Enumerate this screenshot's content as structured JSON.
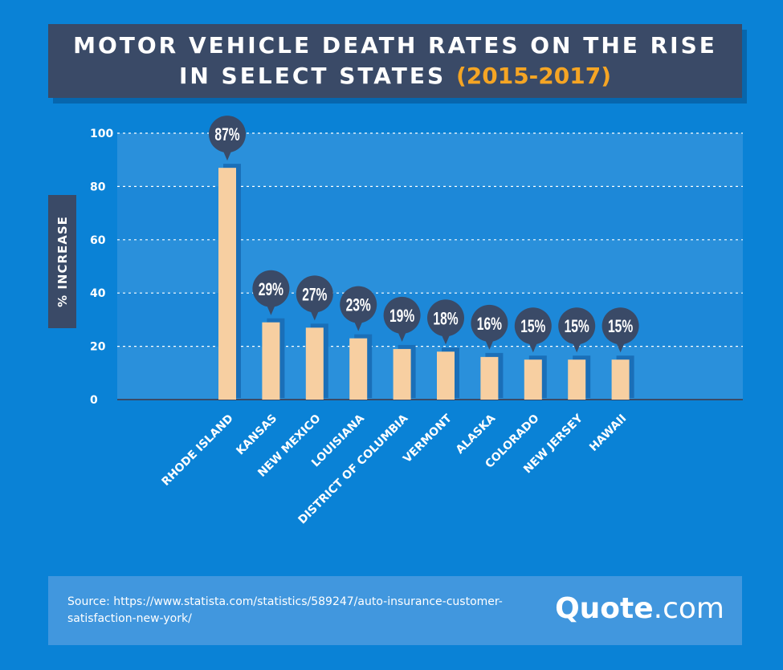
{
  "header": {
    "title_line1": "MOTOR VEHICLE DEATH RATES ON THE RISE",
    "title_line2": "IN SELECT STATES",
    "title_years": "(2015-2017)"
  },
  "footer": {
    "source": "Source: https://www.statista.com/statistics/589247/auto-insurance-customer-satisfaction-new-york/",
    "logo_main": "Quote",
    "logo_suffix": ".com"
  },
  "colors": {
    "background": "#0a82d6",
    "panel": "#3a4a67",
    "accent": "#f5a524",
    "bar": "#f7cfa1",
    "bubble": "#3a4a67"
  },
  "chart_data": {
    "type": "bar",
    "title": "MOTOR VEHICLE DEATH RATES ON THE RISE IN SELECT STATES (2015-2017)",
    "xlabel": "",
    "ylabel": "% INCREASE",
    "ylim": [
      0,
      100
    ],
    "yticks": [
      0,
      20,
      40,
      60,
      80,
      100
    ],
    "grid": true,
    "categories": [
      "RHODE ISLAND",
      "KANSAS",
      "NEW MEXICO",
      "LOUISIANA",
      "DISTRICT OF COLUMBIA",
      "VERMONT",
      "ALASKA",
      "COLORADO",
      "NEW JERSEY",
      "HAWAII"
    ],
    "values": [
      87,
      29,
      27,
      23,
      19,
      18,
      16,
      15,
      15,
      15
    ],
    "data_labels": [
      "87%",
      "29%",
      "27%",
      "23%",
      "19%",
      "18%",
      "16%",
      "15%",
      "15%",
      "15%"
    ]
  }
}
